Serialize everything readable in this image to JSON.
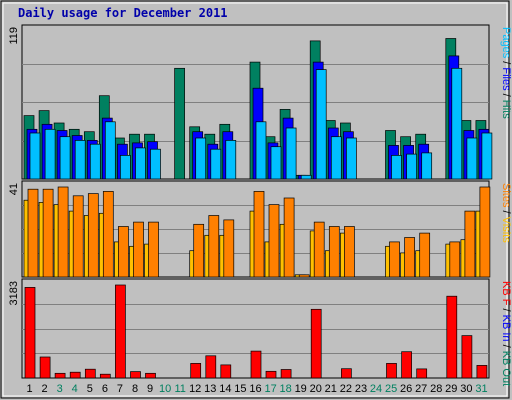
{
  "chart_data": {
    "type": "bar",
    "title": "Daily usage for December 2011",
    "categories": [
      "1",
      "2",
      "3",
      "4",
      "5",
      "6",
      "7",
      "8",
      "9",
      "10",
      "11",
      "12",
      "13",
      "14",
      "15",
      "16",
      "17",
      "18",
      "19",
      "20",
      "21",
      "22",
      "23",
      "24",
      "25",
      "26",
      "27",
      "28",
      "29",
      "30",
      "31"
    ],
    "weekend_days": [
      "3",
      "4",
      "10",
      "11",
      "17",
      "18",
      "24",
      "25",
      "31"
    ],
    "panels": [
      {
        "id": "hits_files_pages",
        "axis_max_label": "119",
        "ylim": [
          0,
          119
        ],
        "legend": [
          {
            "text": "Pages",
            "color": "#00c0ff"
          },
          {
            "text": "Files",
            "color": "#0000ff"
          },
          {
            "text": "Hits",
            "color": "#008060"
          }
        ],
        "series": [
          {
            "name": "Hits",
            "color": "#008060",
            "values": [
              51,
              55,
              45,
              40,
              38,
              67,
              33,
              36,
              36,
              0,
              89,
              42,
              36,
              44,
              0,
              94,
              34,
              56,
              3,
              111,
              47,
              45,
              0,
              0,
              39,
              34,
              36,
              0,
              113,
              47,
              47
            ]
          },
          {
            "name": "Files",
            "color": "#0000ff",
            "values": [
              40,
              44,
              39,
              35,
              31,
              49,
              28,
              29,
              30,
              0,
              0,
              38,
              28,
              38,
              0,
              73,
              29,
              49,
              3,
              94,
              41,
              38,
              0,
              0,
              27,
              27,
              28,
              0,
              99,
              39,
              40
            ]
          },
          {
            "name": "Pages",
            "color": "#00c0ff",
            "values": [
              37,
              40,
              34,
              31,
              28,
              46,
              19,
              25,
              24,
              0,
              0,
              33,
              24,
              31,
              0,
              46,
              26,
              41,
              3,
              88,
              34,
              33,
              0,
              0,
              19,
              20,
              21,
              0,
              89,
              33,
              37
            ]
          }
        ]
      },
      {
        "id": "visits_sites",
        "axis_max_label": "41",
        "ylim": [
          0,
          41
        ],
        "legend": [
          {
            "text": "Sites",
            "color": "#ff8000"
          },
          {
            "text": "Visits",
            "color": "#ffc000"
          }
        ],
        "series": [
          {
            "name": "Visits",
            "color": "#ffc000",
            "values": [
              35,
              34,
              33,
              30,
              28,
              29,
              16,
              14,
              15,
              0,
              0,
              12,
              19,
              19,
              0,
              30,
              16,
              24,
              1,
              21,
              12,
              20,
              0,
              0,
              14,
              11,
              12,
              0,
              15,
              17,
              30
            ]
          },
          {
            "name": "Sites",
            "color": "#ff8000",
            "values": [
              40,
              40,
              41,
              37,
              38,
              39,
              23,
              25,
              25,
              0,
              0,
              24,
              28,
              26,
              0,
              39,
              33,
              36,
              1,
              25,
              23,
              23,
              0,
              0,
              16,
              18,
              20,
              0,
              16,
              30,
              41
            ]
          }
        ]
      },
      {
        "id": "kbytes",
        "axis_max_label": "3183",
        "ylim": [
          0,
          3183
        ],
        "legend": [
          {
            "text": "KB F",
            "color": "#ff0000"
          },
          {
            "text": "KB In",
            "color": "#0000ff"
          },
          {
            "text": "KB Out",
            "color": "#008060"
          }
        ],
        "series": [
          {
            "name": "KB F",
            "color": "#ff0000",
            "values": [
              3100,
              720,
              160,
              200,
              300,
              130,
              3183,
              220,
              160,
              0,
              0,
              500,
              760,
              450,
              0,
              920,
              230,
              290,
              0,
              2350,
              0,
              320,
              0,
              0,
              500,
              900,
              310,
              0,
              2800,
              1450,
              430
            ]
          }
        ]
      }
    ]
  }
}
